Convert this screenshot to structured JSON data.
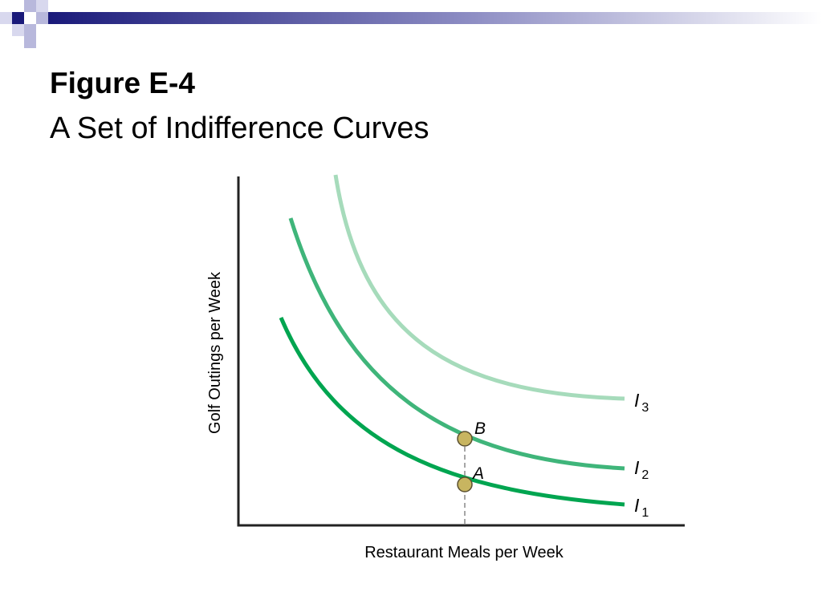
{
  "header": {
    "title": "Figure E-4",
    "subtitle": "A Set of Indifference Curves"
  },
  "diagram": {
    "y_axis_label": "Golf Outings per Week",
    "x_axis_label": "Restaurant Meals per Week",
    "curves": [
      {
        "letter": "I",
        "subscript": "1"
      },
      {
        "letter": "I",
        "subscript": "2"
      },
      {
        "letter": "I",
        "subscript": "3"
      }
    ],
    "points": [
      {
        "label": "A"
      },
      {
        "label": "B"
      }
    ]
  }
}
